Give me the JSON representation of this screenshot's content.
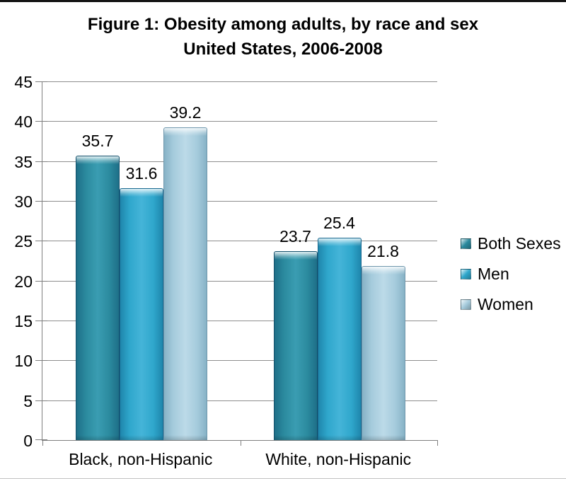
{
  "title": {
    "line1": "Figure 1: Obesity among adults, by race and sex",
    "line2": "United States, 2006-2008"
  },
  "chart_data": {
    "type": "bar",
    "title": "Figure 1: Obesity among adults, by race and sex — United States, 2006-2008",
    "categories": [
      "Black, non-Hispanic",
      "White, non-Hispanic"
    ],
    "series": [
      {
        "name": "Both Sexes",
        "values": [
          35.7,
          23.7
        ],
        "colors": {
          "main": "#2B8A9E",
          "light": "#3A9DB2",
          "dark": "#1E6F88",
          "border": "#14506B"
        }
      },
      {
        "name": "Men",
        "values": [
          31.6,
          25.4
        ],
        "colors": {
          "main": "#2FA7CC",
          "light": "#45B4D8",
          "dark": "#1F86AC",
          "border": "#16678E"
        }
      },
      {
        "name": "Women",
        "values": [
          39.2,
          21.8
        ],
        "colors": {
          "main": "#A5CBDC",
          "light": "#BCDAE8",
          "dark": "#87B2C6",
          "border": "#6E96AC"
        }
      }
    ],
    "ylim": [
      0,
      45
    ],
    "yticks": [
      0,
      5,
      10,
      15,
      20,
      25,
      30,
      35,
      40,
      45
    ],
    "grid": true,
    "legend_position": "right",
    "data_labels": true,
    "xlabel": "",
    "ylabel": ""
  },
  "colors": {
    "background": "#FFFFFF",
    "axis": "#7F7F7F",
    "gridline": "#8E8E8E",
    "text": "#000000",
    "top_border": "#141414",
    "bottom_border": "#C4C4C4"
  }
}
